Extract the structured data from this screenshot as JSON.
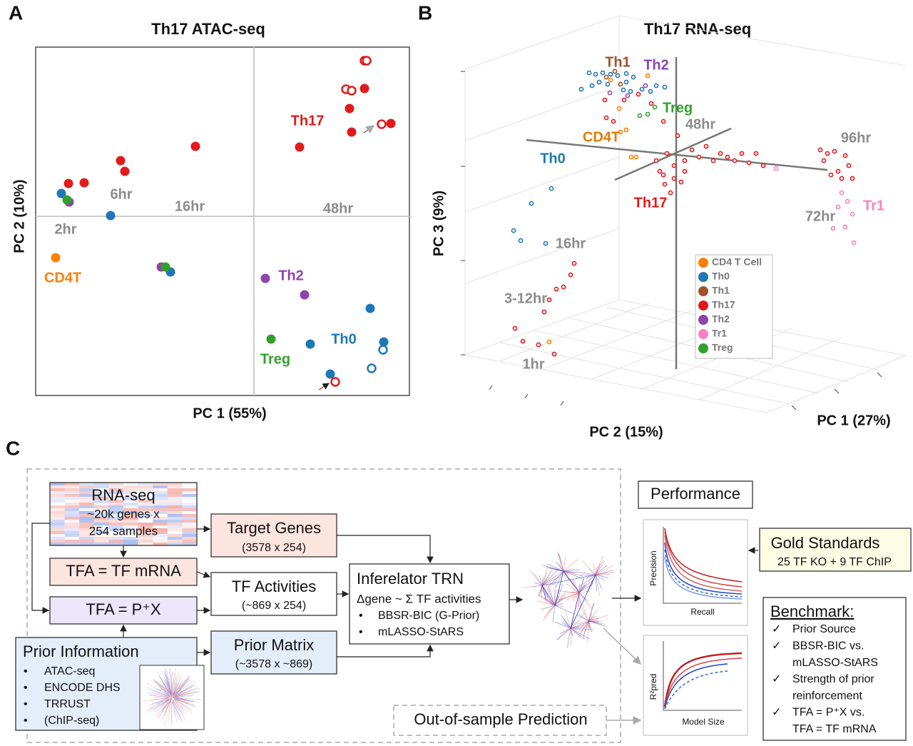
{
  "panels": [
    "A",
    "B",
    "C"
  ],
  "chart_data": [
    {
      "type": "scatter",
      "title": "Th17 ATAC-seq",
      "x_label": "PC 1 (55%)",
      "y_label": "PC 2 (10%)",
      "xlim": [
        0,
        524
      ],
      "ylim": [
        0,
        488
      ],
      "series": [
        {
          "name": "Th17",
          "color": "#e31a1c",
          "x": [
            46,
            68,
            119,
            125,
            224,
            370,
            440,
            443,
            461,
            498,
            435,
            443,
            461,
            464,
            485,
            420
          ],
          "y": [
            297,
            298,
            329,
            314,
            349,
            348,
            402,
            369,
            430,
            381,
            429,
            427,
            469,
            469,
            380,
            19
          ],
          "hollow": [
            false,
            false,
            false,
            false,
            false,
            false,
            false,
            false,
            false,
            false,
            true,
            true,
            true,
            true,
            true,
            true
          ]
        },
        {
          "name": "Th0",
          "color": "#1f78b4",
          "x": [
            36,
            105,
            189,
            469,
            488,
            385,
            413,
            487,
            471
          ],
          "y": [
            283,
            252,
            173,
            122,
            75,
            72,
            30,
            64,
            38
          ],
          "hollow": [
            false,
            false,
            false,
            false,
            false,
            false,
            false,
            true,
            true
          ]
        },
        {
          "name": "Th2",
          "color": "#8e44ad",
          "x": [
            47,
            176,
            322,
            377
          ],
          "y": [
            271,
            180,
            164,
            141
          ],
          "hollow": [
            false,
            false,
            false,
            false
          ]
        },
        {
          "name": "Treg",
          "color": "#33a02c",
          "x": [
            44,
            182,
            330
          ],
          "y": [
            274,
            180,
            79
          ],
          "hollow": [
            false,
            false,
            false
          ]
        },
        {
          "name": "CD4T",
          "color": "#ff7f00",
          "x": [
            28
          ],
          "y": [
            193
          ],
          "hollow": [
            false
          ]
        }
      ],
      "annotations": [
        {
          "text": "6hr",
          "color": "#8c8c8c"
        },
        {
          "text": "16hr",
          "color": "#8c8c8c"
        },
        {
          "text": "48hr",
          "color": "#8c8c8c"
        },
        {
          "text": "2hr",
          "color": "#8c8c8c"
        }
      ]
    },
    {
      "type": "scatter3d",
      "title": "Th17 RNA-seq",
      "x_label": "PC 2 (15%)",
      "x2_label": "PC 1 (27%)",
      "y_label": "PC 3 (9%)",
      "xlim": [
        0,
        620
      ],
      "ylim": [
        0,
        460
      ],
      "series": [
        {
          "name": "CD4 T Cell",
          "color": "#ff7f00",
          "x": [
            258,
            206,
            218,
            220,
            228,
            235,
            242,
            120
          ],
          "y": [
            414,
            408,
            368,
            335,
            338,
            300,
            300,
            41
          ]
        },
        {
          "name": "Th0",
          "color": "#1f78b4",
          "x": [
            176,
            185,
            195,
            206,
            216,
            228,
            238,
            180,
            190,
            202,
            224,
            234,
            250,
            262,
            270,
            282,
            165,
            228,
            123,
            95,
            70,
            80,
            115
          ],
          "y": [
            418,
            416,
            418,
            416,
            414,
            417,
            412,
            400,
            405,
            402,
            394,
            392,
            395,
            392,
            400,
            398,
            395,
            405,
            256,
            235,
            197,
            183,
            179
          ]
        },
        {
          "name": "Th1",
          "color": "#a0522d",
          "x": [
            212,
            220,
            200
          ],
          "y": [
            420,
            402,
            412
          ]
        },
        {
          "name": "Th17",
          "color": "#e31a1c",
          "x": [
            198,
            200,
            210,
            225,
            245,
            263,
            280,
            300,
            320,
            340,
            360,
            380,
            400,
            420,
            410,
            390,
            370,
            350,
            330,
            310,
            295,
            280,
            290,
            305,
            270,
            285,
            275,
            310,
            295,
            282,
            500,
            510,
            520,
            535,
            540,
            525,
            515,
            545,
            530,
            505,
            155,
            150,
            140,
            130,
            120,
            113,
            72,
            83,
            105,
            127
          ],
          "y": [
            380,
            355,
            350,
            380,
            388,
            375,
            350,
            330,
            310,
            315,
            305,
            295,
            292,
            288,
            305,
            305,
            300,
            295,
            300,
            280,
            270,
            275,
            250,
            265,
            295,
            305,
            280,
            295,
            288,
            262,
            310,
            305,
            308,
            302,
            288,
            280,
            275,
            270,
            270,
            295,
            151,
            135,
            118,
            115,
            100,
            83,
            60,
            42,
            37,
            24
          ]
        },
        {
          "name": "Th2",
          "color": "#8e44ad",
          "x": [
            255,
            205,
            230
          ],
          "y": [
            400,
            390,
            386
          ]
        },
        {
          "name": "Tr1",
          "color": "#f781bf",
          "x": [
            530,
            538,
            525,
            545,
            535,
            518,
            547,
            438
          ],
          "y": [
            250,
            238,
            230,
            220,
            202,
            200,
            180,
            284
          ]
        },
        {
          "name": "Treg",
          "color": "#33a02c",
          "x": [
            258,
            247,
            268
          ],
          "y": [
            360,
            358,
            370
          ]
        }
      ],
      "annotations": [
        {
          "text": "Th1",
          "color": "#a0522d"
        },
        {
          "text": "Th2",
          "color": "#8e44ad"
        },
        {
          "text": "Treg",
          "color": "#33a02c"
        },
        {
          "text": "CD4T",
          "color": "#e07b00"
        },
        {
          "text": "Th0",
          "color": "#1f78b4"
        },
        {
          "text": "Th17",
          "color": "#e31a1c"
        },
        {
          "text": "Tr1",
          "color": "#f781bf"
        },
        {
          "text": "48hr",
          "color": "#8c8c8c"
        },
        {
          "text": "96hr",
          "color": "#8c8c8c"
        },
        {
          "text": "72hr",
          "color": "#8c8c8c"
        },
        {
          "text": "16hr",
          "color": "#8c8c8c"
        },
        {
          "text": "3-12hr",
          "color": "#8c8c8c"
        },
        {
          "text": "1hr",
          "color": "#8c8c8c"
        }
      ]
    }
  ],
  "diagram": {
    "rna_seq": [
      "RNA-seq",
      "~20k genes x",
      "254 samples"
    ],
    "target_genes": [
      "Target Genes",
      "(3578 x 254)"
    ],
    "tfa_mrna": "TFA = TF mRNA",
    "tf_activities": [
      "TF Activities",
      "(~869 x 254)"
    ],
    "tfa_px": "TFA = P⁺X",
    "prior_information": {
      "title": "Prior Information",
      "items": [
        "ATAC-seq",
        "ENCODE DHS",
        "TRRUST",
        "(ChIP-seq)"
      ]
    },
    "prior_matrix": [
      "Prior Matrix",
      "(~3578 x ~869)"
    ],
    "inferelator": {
      "title": "Inferelator TRN",
      "formula": "Δgene ~ Σ TF activities",
      "items": [
        "BBSR-BIC (G-Prior)",
        "mLASSO-StARS"
      ]
    },
    "performance": "Performance",
    "precision_plot": [
      "Precision",
      "Recall"
    ],
    "r2_plot": [
      "R²pred",
      "Model Size"
    ],
    "gold_standards": [
      "Gold Standards",
      "25 TF KO + 9 TF ChIP"
    ],
    "out_of_sample": "Out-of-sample Prediction",
    "benchmark": {
      "title": "Benchmark:",
      "items": [
        [
          "Prior Source"
        ],
        [
          "BBSR-BIC vs.",
          "mLASSO-StARS"
        ],
        [
          "Strength of prior",
          "reinforcement"
        ],
        [
          "TFA = P⁺X vs.",
          "TFA = TF mRNA"
        ]
      ]
    }
  }
}
